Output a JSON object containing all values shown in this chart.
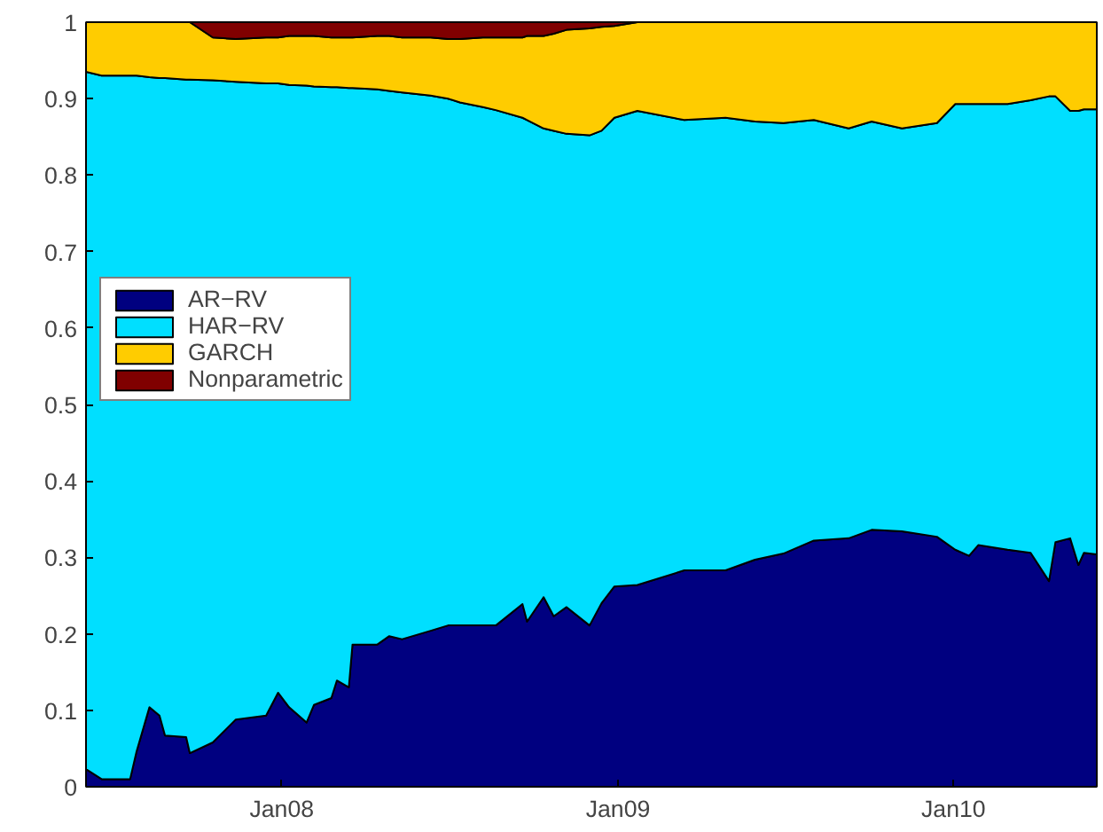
{
  "chart_data": {
    "type": "area",
    "stacked": true,
    "x": [
      "2007-06-02",
      "2007-06-19",
      "2007-07-20",
      "2007-07-27",
      "2007-08-10",
      "2007-08-21",
      "2007-08-27",
      "2007-09-19",
      "2007-09-23",
      "2007-10-18",
      "2007-11-12",
      "2007-12-15",
      "2007-12-28",
      "2008-01-09",
      "2008-01-28",
      "2008-02-05",
      "2008-02-24",
      "2008-03-01",
      "2008-03-14",
      "2008-03-18",
      "2008-04-14",
      "2008-04-27",
      "2008-05-11",
      "2008-06-11",
      "2008-06-30",
      "2008-07-13",
      "2008-08-07",
      "2008-08-21",
      "2008-09-19",
      "2008-09-24",
      "2008-10-12",
      "2008-10-23",
      "2008-11-06",
      "2008-12-01",
      "2008-12-14",
      "2008-12-28",
      "2009-01-22",
      "2009-03-14",
      "2009-04-28",
      "2009-05-30",
      "2009-06-30",
      "2009-08-02",
      "2009-09-09",
      "2009-10-04",
      "2009-11-06",
      "2009-12-14",
      "2010-01-03",
      "2010-01-18",
      "2010-01-28",
      "2010-03-01",
      "2010-03-26",
      "2010-04-15",
      "2010-04-22",
      "2010-05-08",
      "2010-05-17",
      "2010-05-23",
      "2010-06-06"
    ],
    "series": [
      {
        "name": "AR−RV",
        "color": "#000080",
        "values": [
          0.023,
          0.01,
          0.01,
          0.046,
          0.104,
          0.093,
          0.067,
          0.065,
          0.044,
          0.058,
          0.088,
          0.093,
          0.123,
          0.104,
          0.084,
          0.107,
          0.116,
          0.139,
          0.13,
          0.186,
          0.186,
          0.197,
          0.193,
          0.204,
          0.211,
          0.211,
          0.211,
          0.211,
          0.239,
          0.216,
          0.248,
          0.223,
          0.235,
          0.211,
          0.24,
          0.262,
          0.264,
          0.283,
          0.283,
          0.297,
          0.305,
          0.322,
          0.325,
          0.336,
          0.334,
          0.327,
          0.31,
          0.302,
          0.316,
          0.31,
          0.306,
          0.269,
          0.32,
          0.325,
          0.29,
          0.306,
          0.304
        ]
      },
      {
        "name": "HAR−RV",
        "color": "#00dfff",
        "values": [
          0.912,
          0.92,
          0.92,
          0.884,
          0.824,
          0.834,
          0.86,
          0.86,
          0.881,
          0.866,
          0.834,
          0.827,
          0.797,
          0.814,
          0.833,
          0.809,
          0.799,
          0.776,
          0.784,
          0.728,
          0.726,
          0.713,
          0.715,
          0.7,
          0.689,
          0.684,
          0.678,
          0.674,
          0.636,
          0.656,
          0.613,
          0.635,
          0.619,
          0.641,
          0.618,
          0.613,
          0.62,
          0.589,
          0.592,
          0.573,
          0.563,
          0.55,
          0.536,
          0.534,
          0.527,
          0.541,
          0.583,
          0.591,
          0.577,
          0.583,
          0.592,
          0.634,
          0.583,
          0.559,
          0.594,
          0.58,
          0.582
        ]
      },
      {
        "name": "GARCH",
        "color": "#ffcc00",
        "values": [
          0.065,
          0.07,
          0.07,
          0.07,
          0.072,
          0.073,
          0.073,
          0.075,
          0.075,
          0.056,
          0.056,
          0.06,
          0.06,
          0.064,
          0.065,
          0.066,
          0.065,
          0.065,
          0.066,
          0.066,
          0.07,
          0.072,
          0.072,
          0.076,
          0.078,
          0.083,
          0.091,
          0.095,
          0.105,
          0.11,
          0.121,
          0.127,
          0.136,
          0.14,
          0.136,
          0.12,
          0.116,
          0.128,
          0.125,
          0.13,
          0.132,
          0.128,
          0.139,
          0.13,
          0.139,
          0.132,
          0.107,
          0.107,
          0.107,
          0.107,
          0.102,
          0.097,
          0.097,
          0.116,
          0.116,
          0.114,
          0.114
        ]
      },
      {
        "name": "Nonparametric",
        "color": "#800000",
        "values": [
          0,
          0,
          0,
          0,
          0,
          0,
          0,
          0,
          0,
          0.02,
          0.022,
          0.02,
          0.02,
          0.018,
          0.018,
          0.018,
          0.02,
          0.02,
          0.02,
          0.02,
          0.018,
          0.018,
          0.02,
          0.02,
          0.022,
          0.022,
          0.02,
          0.02,
          0.02,
          0.018,
          0.018,
          0.015,
          0.01,
          0.008,
          0.006,
          0.005,
          0,
          0,
          0,
          0,
          0,
          0,
          0,
          0,
          0,
          0,
          0,
          0,
          0,
          0,
          0,
          0,
          0,
          0,
          0,
          0,
          0
        ]
      }
    ],
    "xlim": [
      "2007-06-02",
      "2010-06-06"
    ],
    "xticks": [
      {
        "value": "2008-01-01",
        "label": "Jan08"
      },
      {
        "value": "2009-01-01",
        "label": "Jan09"
      },
      {
        "value": "2010-01-01",
        "label": "Jan10"
      }
    ],
    "ylim": [
      0,
      1
    ],
    "yticks": [
      0,
      0.1,
      0.2,
      0.3,
      0.4,
      0.5,
      0.6,
      0.7,
      0.8,
      0.9,
      1
    ],
    "legend": "top left"
  }
}
